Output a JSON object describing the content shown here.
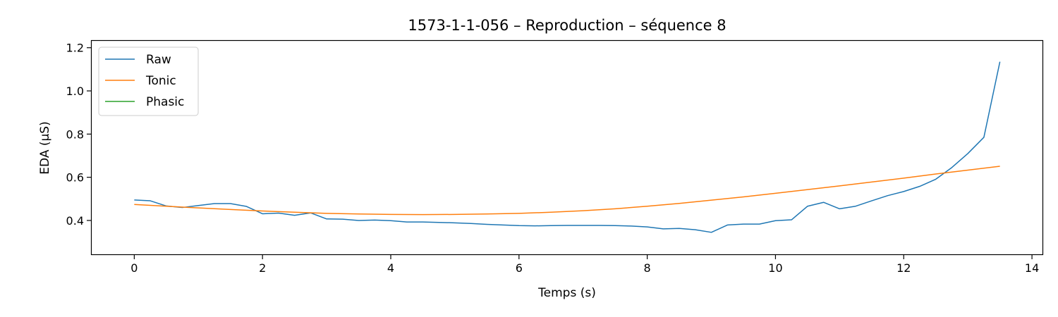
{
  "chart_data": {
    "type": "line",
    "title": "1573-1-1-056 – Reproduction – séquence 8",
    "xlabel": "Temps (s)",
    "ylabel": "EDA (µS)",
    "xlim": [
      -0.675,
      14.175
    ],
    "ylim": [
      0.24,
      1.235
    ],
    "xticks": [
      0,
      2,
      4,
      6,
      8,
      10,
      12,
      14
    ],
    "yticks": [
      0.4,
      0.6,
      0.8,
      1.0,
      1.2
    ],
    "ytick_labels": [
      "0.4",
      "0.6",
      "0.8",
      "1.0",
      "1.2"
    ],
    "grid": false,
    "legend": "top-left",
    "series": [
      {
        "name": "Raw",
        "color": "#1f77b4",
        "x": [
          0,
          0.25,
          0.5,
          0.75,
          1.0,
          1.25,
          1.5,
          1.75,
          2.0,
          2.25,
          2.5,
          2.75,
          3.0,
          3.25,
          3.5,
          3.75,
          4.0,
          4.25,
          4.5,
          4.75,
          5.0,
          5.25,
          5.5,
          5.75,
          6.0,
          6.25,
          6.5,
          6.75,
          7.0,
          7.25,
          7.5,
          7.75,
          8.0,
          8.25,
          8.5,
          8.75,
          9.0,
          9.25,
          9.5,
          9.75,
          10.0,
          10.25,
          10.5,
          10.75,
          11.0,
          11.25,
          11.5,
          11.75,
          12.0,
          12.25,
          12.5,
          12.75,
          13.0,
          13.25,
          13.5
        ],
        "y": [
          0.495,
          0.491,
          0.467,
          0.46,
          0.469,
          0.478,
          0.478,
          0.465,
          0.431,
          0.434,
          0.424,
          0.435,
          0.407,
          0.406,
          0.4,
          0.402,
          0.399,
          0.393,
          0.393,
          0.391,
          0.389,
          0.386,
          0.382,
          0.379,
          0.376,
          0.375,
          0.376,
          0.377,
          0.377,
          0.377,
          0.376,
          0.374,
          0.37,
          0.361,
          0.363,
          0.357,
          0.345,
          0.379,
          0.383,
          0.383,
          0.399,
          0.403,
          0.466,
          0.484,
          0.454,
          0.466,
          0.491,
          0.515,
          0.534,
          0.558,
          0.591,
          0.645,
          0.71,
          0.785,
          1.135
        ]
      },
      {
        "name": "Tonic",
        "color": "#ff7f0e",
        "x": [
          0,
          0.5,
          1.0,
          1.5,
          2.0,
          2.5,
          3.0,
          3.5,
          4.0,
          4.5,
          5.0,
          5.5,
          6.0,
          6.5,
          7.0,
          7.5,
          8.0,
          8.5,
          9.0,
          9.5,
          10.0,
          10.5,
          11.0,
          11.5,
          12.0,
          12.5,
          13.0,
          13.5
        ],
        "y": [
          0.474,
          0.466,
          0.458,
          0.451,
          0.444,
          0.438,
          0.433,
          0.43,
          0.428,
          0.427,
          0.428,
          0.43,
          0.433,
          0.438,
          0.445,
          0.454,
          0.466,
          0.479,
          0.494,
          0.509,
          0.526,
          0.543,
          0.56,
          0.578,
          0.596,
          0.615,
          0.633,
          0.651
        ]
      },
      {
        "name": "Phasic",
        "color": "#2ca02c",
        "x": [],
        "y": []
      }
    ]
  }
}
